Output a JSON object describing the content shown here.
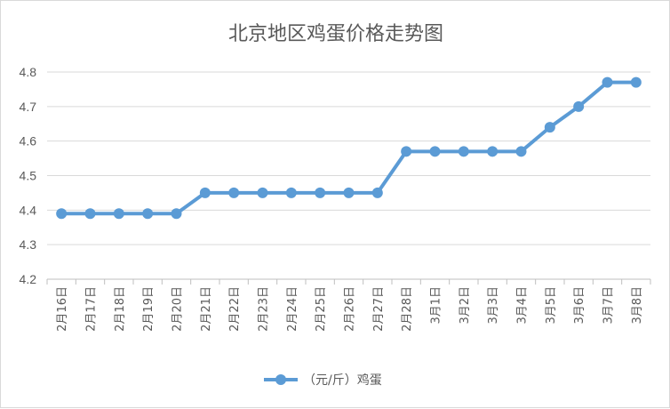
{
  "chart_data": {
    "type": "line",
    "title": "北京地区鸡蛋价格走势图",
    "xlabel": "",
    "ylabel": "",
    "ylim": [
      4.2,
      4.8
    ],
    "yticks": [
      "4.2",
      "4.3",
      "4.4",
      "4.5",
      "4.6",
      "4.7",
      "4.8"
    ],
    "grid": true,
    "legend_position": "bottom",
    "categories": [
      "2月16日",
      "2月17日",
      "2月18日",
      "2月19日",
      "2月20日",
      "2月21日",
      "2月22日",
      "2月23日",
      "2月24日",
      "2月25日",
      "2月26日",
      "2月27日",
      "2月28日",
      "3月1日",
      "3月2日",
      "3月3日",
      "3月4日",
      "3月5日",
      "3月6日",
      "3月7日",
      "3月8日"
    ],
    "series": [
      {
        "name": "（元/斤）鸡蛋",
        "color": "#5b9bd5",
        "values": [
          4.39,
          4.39,
          4.39,
          4.39,
          4.39,
          4.45,
          4.45,
          4.45,
          4.45,
          4.45,
          4.45,
          4.45,
          4.57,
          4.57,
          4.57,
          4.57,
          4.57,
          4.64,
          4.7,
          4.77,
          4.77
        ]
      }
    ]
  }
}
